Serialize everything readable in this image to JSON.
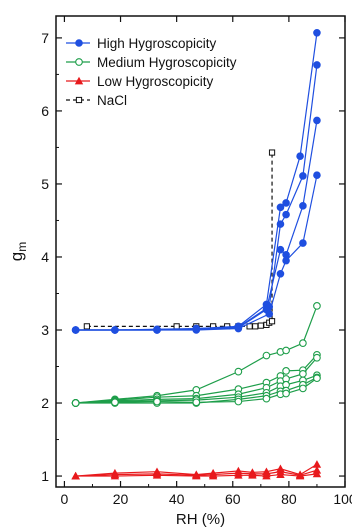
{
  "chart_data": {
    "type": "line",
    "xlabel": "RH (%)",
    "ylabel_main": "g",
    "ylabel_sub": "m",
    "xlim": [
      -3,
      100
    ],
    "ylim": [
      0.85,
      7.3
    ],
    "xticks": [
      0,
      20,
      40,
      60,
      80,
      100
    ],
    "yticks": [
      1,
      2,
      3,
      4,
      5,
      6,
      7
    ],
    "x_tick_labels": [
      "0",
      "20",
      "40",
      "60",
      "80",
      "100"
    ],
    "y_tick_labels": [
      "1",
      "2",
      "3",
      "4",
      "5",
      "6",
      "7"
    ],
    "grid": false,
    "legend_position": "top-left",
    "legend": [
      {
        "label": "High Hygroscopicity",
        "color": "#1f4fe0",
        "marker": "circle-filled",
        "dash": false
      },
      {
        "label": "Medium Hygroscopicity",
        "color": "#1e9e4a",
        "marker": "circle-open",
        "dash": false
      },
      {
        "label": "Low Hygroscopicity",
        "color": "#e8191c",
        "marker": "triangle-filled",
        "dash": false
      },
      {
        "label": "NaCl",
        "color": "#111111",
        "marker": "square-open",
        "dash": true
      }
    ],
    "series": [
      {
        "group": "High Hygroscopicity",
        "color": "#1f4fe0",
        "marker": "circle-filled",
        "x": [
          4,
          18,
          33,
          47,
          62,
          72,
          77,
          79,
          84,
          90
        ],
        "y": [
          3.0,
          3.0,
          3.01,
          3.02,
          3.05,
          3.35,
          4.68,
          4.74,
          5.38,
          7.07
        ]
      },
      {
        "group": "High Hygroscopicity",
        "color": "#1f4fe0",
        "marker": "circle-filled",
        "x": [
          4,
          18,
          33,
          47,
          62,
          73,
          77,
          79,
          85,
          90
        ],
        "y": [
          3.0,
          3.0,
          3.0,
          3.02,
          3.04,
          3.32,
          4.45,
          4.58,
          5.11,
          6.63
        ]
      },
      {
        "group": "High Hygroscopicity",
        "color": "#1f4fe0",
        "marker": "circle-filled",
        "x": [
          4,
          18,
          33,
          47,
          62,
          72,
          77,
          79,
          85,
          90
        ],
        "y": [
          3.0,
          3.0,
          3.0,
          3.01,
          3.03,
          3.28,
          4.1,
          4.03,
          4.7,
          5.87
        ]
      },
      {
        "group": "High Hygroscopicity",
        "color": "#1f4fe0",
        "marker": "circle-filled",
        "x": [
          4,
          18,
          33,
          47,
          62,
          73,
          77,
          79,
          85,
          90
        ],
        "y": [
          3.0,
          3.0,
          3.0,
          3.0,
          3.02,
          3.22,
          3.77,
          3.95,
          4.19,
          5.12
        ]
      },
      {
        "group": "Medium Hygroscopicity",
        "color": "#1e9e4a",
        "marker": "circle-open",
        "x": [
          4,
          18,
          33,
          47,
          62,
          72,
          77,
          79,
          85,
          90
        ],
        "y": [
          2.0,
          2.05,
          2.1,
          2.18,
          2.43,
          2.65,
          2.7,
          2.72,
          2.82,
          3.33
        ]
      },
      {
        "group": "Medium Hygroscopicity",
        "color": "#1e9e4a",
        "marker": "circle-open",
        "x": [
          4,
          18,
          33,
          47,
          62,
          72,
          77,
          79,
          85,
          90
        ],
        "y": [
          2.0,
          2.04,
          2.08,
          2.1,
          2.19,
          2.28,
          2.37,
          2.44,
          2.45,
          2.66
        ]
      },
      {
        "group": "Medium Hygroscopicity",
        "color": "#1e9e4a",
        "marker": "circle-open",
        "x": [
          4,
          18,
          33,
          47,
          62,
          72,
          77,
          79,
          85,
          90
        ],
        "y": [
          2.0,
          2.03,
          2.05,
          2.06,
          2.12,
          2.21,
          2.3,
          2.33,
          2.4,
          2.62
        ]
      },
      {
        "group": "Medium Hygroscopicity",
        "color": "#1e9e4a",
        "marker": "circle-open",
        "x": [
          4,
          18,
          33,
          47,
          62,
          72,
          77,
          79,
          85,
          90
        ],
        "y": [
          2.0,
          2.02,
          2.03,
          2.04,
          2.08,
          2.14,
          2.23,
          2.25,
          2.31,
          2.38
        ]
      },
      {
        "group": "Medium Hygroscopicity",
        "color": "#1e9e4a",
        "marker": "circle-open",
        "x": [
          4,
          18,
          33,
          47,
          62,
          72,
          77,
          79,
          85,
          90
        ],
        "y": [
          2.0,
          2.0,
          2.0,
          2.0,
          2.05,
          2.1,
          2.16,
          2.17,
          2.25,
          2.35
        ]
      },
      {
        "group": "Medium Hygroscopicity",
        "color": "#1e9e4a",
        "marker": "circle-open",
        "x": [
          4,
          18,
          33,
          47,
          62,
          72,
          77,
          79,
          85,
          90
        ],
        "y": [
          2.0,
          2.01,
          2.02,
          2.01,
          2.02,
          2.06,
          2.12,
          2.13,
          2.2,
          2.34
        ]
      },
      {
        "group": "Low Hygroscopicity",
        "color": "#e8191c",
        "marker": "triangle-filled",
        "x": [
          4,
          18,
          33,
          47,
          53,
          62,
          67,
          72,
          77,
          84,
          90
        ],
        "y": [
          1.0,
          1.04,
          1.06,
          1.02,
          1.04,
          1.07,
          1.05,
          1.06,
          1.1,
          1.02,
          1.16
        ]
      },
      {
        "group": "Low Hygroscopicity",
        "color": "#e8191c",
        "marker": "triangle-filled",
        "x": [
          4,
          18,
          33,
          47,
          53,
          62,
          67,
          72,
          77,
          84,
          90
        ],
        "y": [
          1.0,
          1.02,
          1.03,
          1.01,
          1.02,
          1.04,
          1.03,
          1.03,
          1.06,
          1.01,
          1.08
        ]
      },
      {
        "group": "Low Hygroscopicity",
        "color": "#e8191c",
        "marker": "triangle-filled",
        "x": [
          4,
          18,
          33,
          47,
          53,
          62,
          67,
          72,
          77,
          84,
          90
        ],
        "y": [
          1.0,
          1.0,
          1.01,
          1.0,
          1.0,
          1.01,
          1.01,
          1.0,
          1.02,
          1.0,
          1.03
        ]
      },
      {
        "group": "NaCl",
        "color": "#111111",
        "marker": "square-open",
        "dash": true,
        "x": [
          8,
          40,
          47,
          53,
          58,
          62,
          66,
          68,
          70,
          72,
          73,
          74,
          74
        ],
        "y": [
          3.05,
          3.05,
          3.05,
          3.05,
          3.05,
          3.05,
          3.05,
          3.05,
          3.06,
          3.07,
          3.1,
          3.12,
          5.43
        ]
      }
    ]
  }
}
